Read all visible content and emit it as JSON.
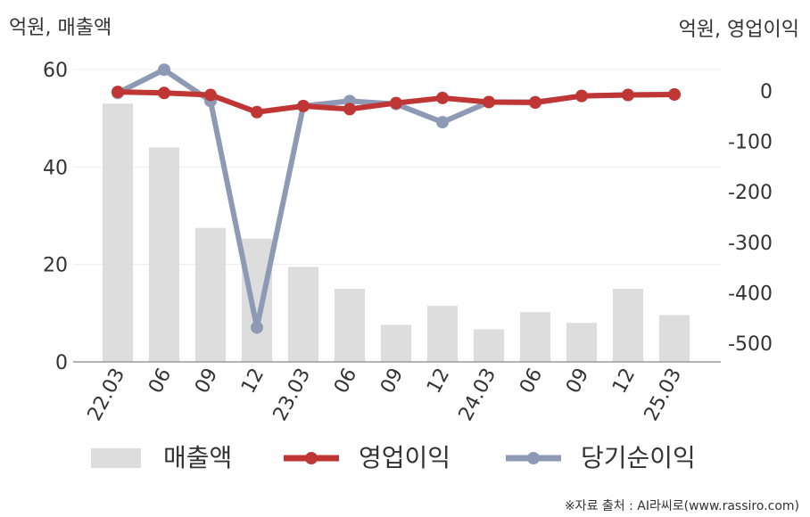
{
  "chart_data": {
    "type": "bar+line",
    "left_unit_label": "억원, 매출액",
    "right_unit_label": "억원, 영업이익",
    "categories": [
      "22.03",
      "06",
      "09",
      "12",
      "23.03",
      "06",
      "09",
      "12",
      "24.03",
      "06",
      "09",
      "12",
      "25.03"
    ],
    "series": [
      {
        "name": "매출액",
        "kind": "bar",
        "axis": "left",
        "color": "#dddddd",
        "values": [
          53,
          44,
          27.5,
          25.3,
          19.5,
          15,
          7.6,
          11.5,
          6.7,
          10.2,
          8,
          15,
          9.6
        ]
      },
      {
        "name": "영업이익",
        "kind": "line",
        "axis": "right",
        "color": "#c03635",
        "values": [
          -2,
          -4,
          -8,
          -42,
          -30,
          -36,
          -24,
          -14,
          -22,
          -23,
          -10,
          -8,
          -7
        ]
      },
      {
        "name": "당기순이익",
        "kind": "line",
        "axis": "right",
        "color": "#8e9ab5",
        "values": [
          -4,
          42,
          -20,
          -469,
          -30,
          -20,
          -26,
          -62,
          -22,
          -22,
          -10,
          -8,
          -7
        ]
      }
    ],
    "left_axis": {
      "ticks": [
        "0",
        "20",
        "40",
        "60"
      ],
      "tick_values": [
        0,
        20,
        40,
        60
      ],
      "range": [
        0,
        60
      ]
    },
    "right_axis": {
      "ticks": [
        "0",
        "-100",
        "-200",
        "-300",
        "-400",
        "-500"
      ],
      "tick_values": [
        0,
        -100,
        -200,
        -300,
        -400,
        -500
      ]
    },
    "grid": true,
    "legend_position": "bottom"
  },
  "source": "※자료 출처 : AI라씨로(www.rassiro.com)"
}
